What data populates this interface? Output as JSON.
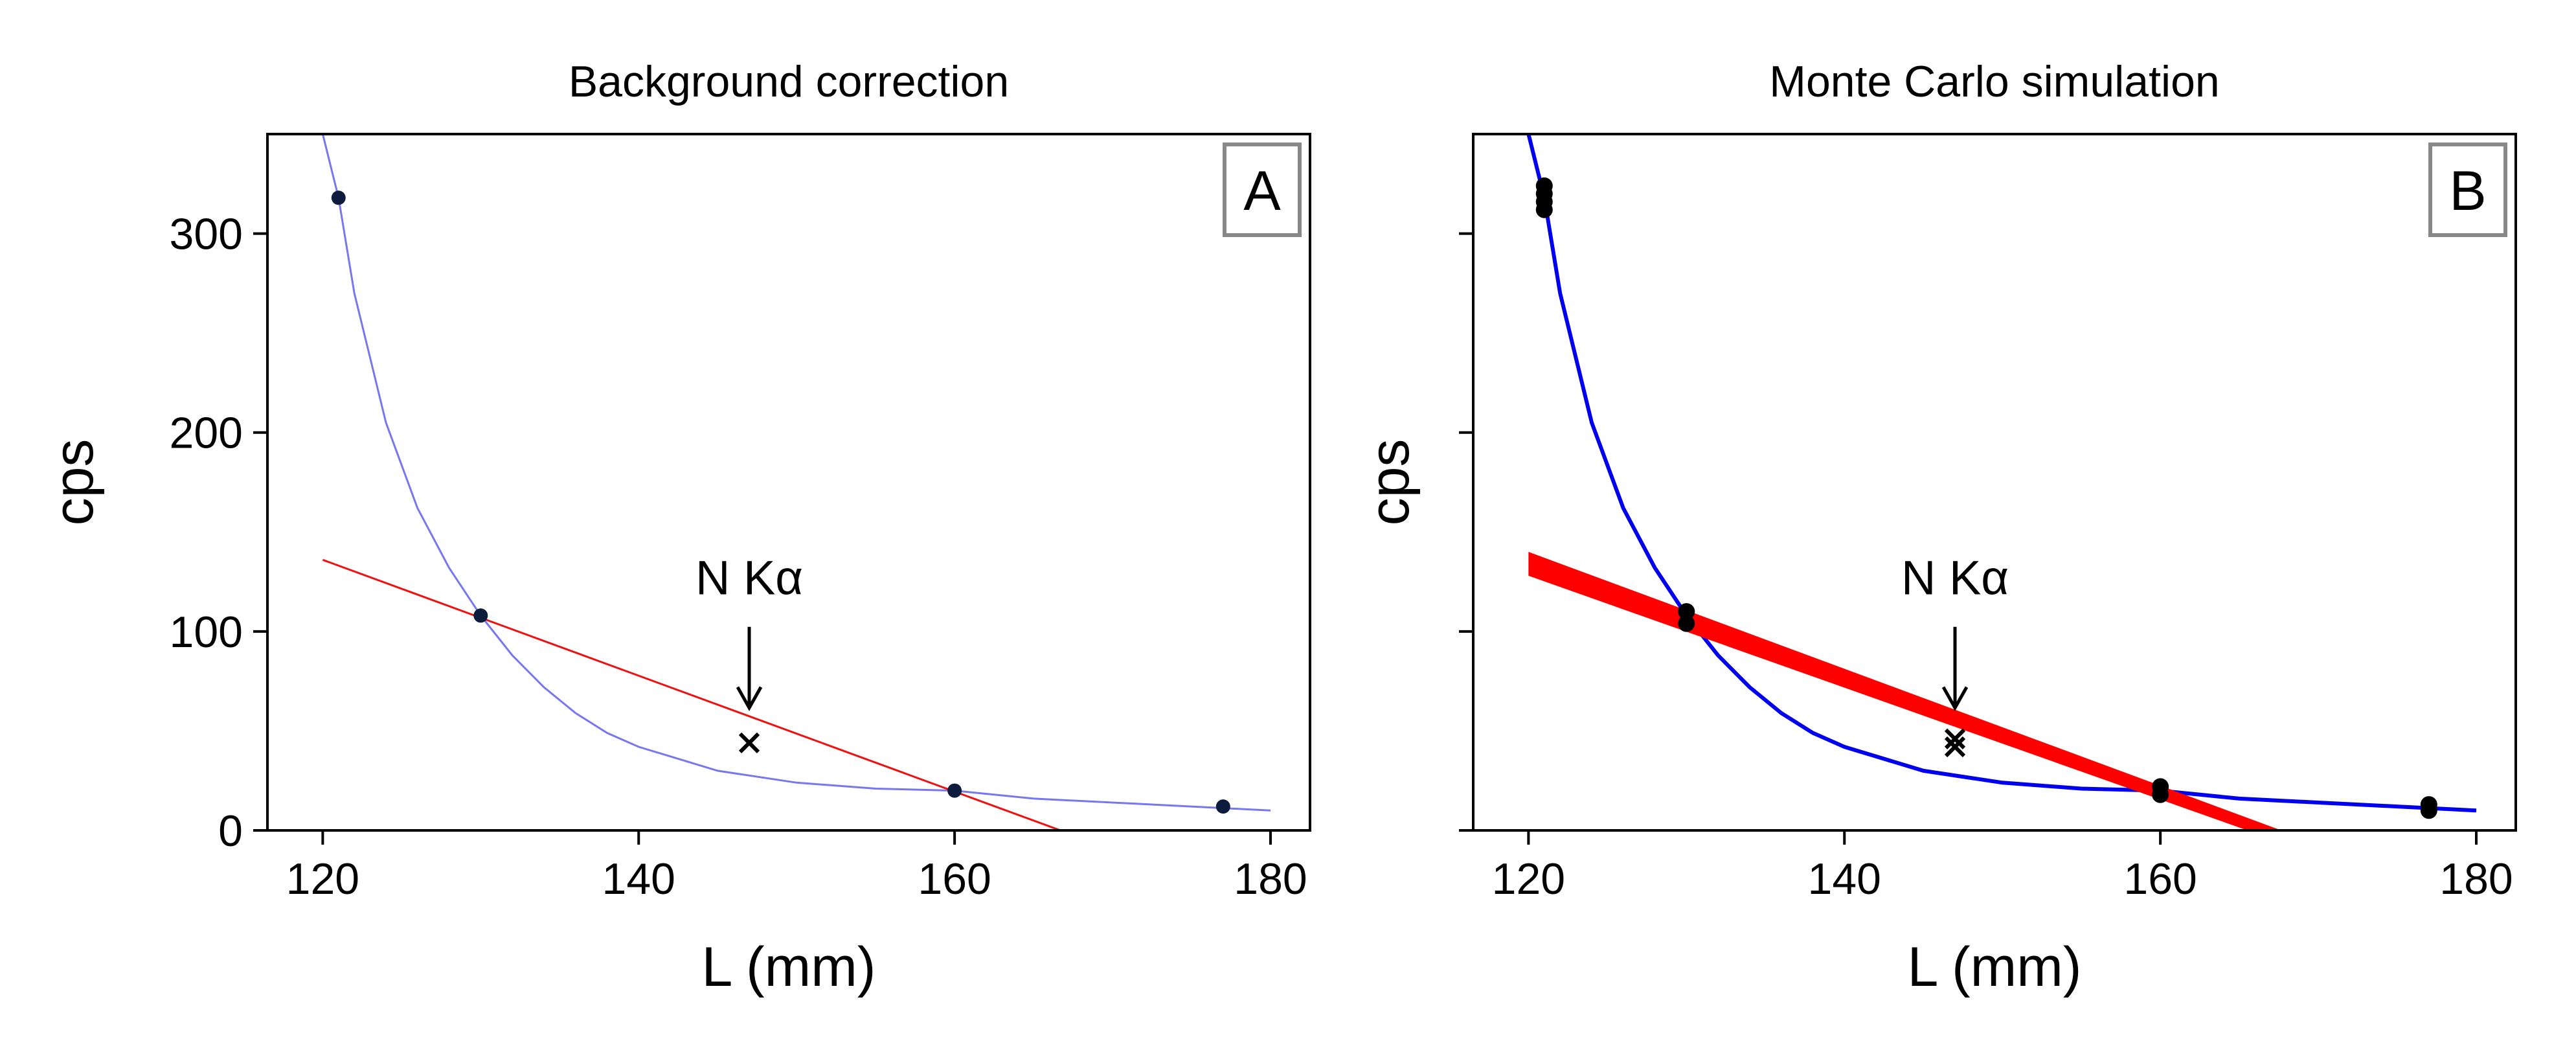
{
  "chart_data": [
    {
      "type": "line",
      "panel_label": "A",
      "title": "Background correction",
      "xlabel": "L (mm)",
      "ylabel": "cps",
      "xlim": [
        116.5,
        182.5
      ],
      "ylim": [
        0,
        350
      ],
      "xticks": [
        120,
        140,
        160,
        180
      ],
      "yticks": [
        0,
        100,
        200,
        300
      ],
      "show_ytick_labels": true,
      "grid": false,
      "legend": "none",
      "annotation": {
        "text": "N Kα",
        "x": 147,
        "y": 60
      },
      "series": [
        {
          "kind": "points",
          "color": "#0d1b3d",
          "x": [
            121,
            130,
            160,
            177
          ],
          "y": [
            318,
            108,
            20,
            12
          ]
        },
        {
          "kind": "curve",
          "color": "#7777ee",
          "x": [
            120,
            121,
            122,
            124,
            126,
            128,
            130,
            132,
            134,
            136,
            138,
            140,
            145,
            150,
            155,
            160,
            165,
            170,
            175,
            180
          ],
          "y": [
            350,
            318,
            270,
            205,
            162,
            132,
            108,
            88,
            72,
            59,
            49,
            42,
            30,
            24,
            21,
            20,
            16,
            14,
            12,
            10
          ]
        },
        {
          "kind": "line",
          "color": "#ee1111",
          "x": [
            120,
            166.7
          ],
          "y": [
            136,
            0
          ]
        },
        {
          "kind": "marker",
          "marker": "x",
          "color": "#000000",
          "x": [
            147
          ],
          "y": [
            44
          ]
        }
      ]
    },
    {
      "type": "line",
      "panel_label": "B",
      "title": "Monte Carlo simulation",
      "xlabel": "L (mm)",
      "ylabel": "cps",
      "xlim": [
        116.5,
        182.5
      ],
      "ylim": [
        0,
        350
      ],
      "xticks": [
        120,
        140,
        160,
        180
      ],
      "yticks": [
        0,
        100,
        200,
        300
      ],
      "show_ytick_labels": false,
      "grid": false,
      "legend": "none",
      "annotation": {
        "text": "N Kα",
        "x": 147,
        "y": 60
      },
      "series": [
        {
          "kind": "points",
          "color": "#000000",
          "x": [
            121,
            121,
            121,
            121,
            130,
            130,
            160,
            160,
            177,
            177
          ],
          "y": [
            312,
            316,
            320,
            324,
            104,
            110,
            18,
            22,
            10,
            13
          ]
        },
        {
          "kind": "curve",
          "color": "#0000ee",
          "x": [
            120,
            121,
            122,
            124,
            126,
            128,
            130,
            132,
            134,
            136,
            138,
            140,
            145,
            150,
            155,
            160,
            165,
            170,
            175,
            180
          ],
          "y": [
            350,
            318,
            270,
            205,
            162,
            132,
            108,
            88,
            72,
            59,
            49,
            42,
            30,
            24,
            21,
            20,
            16,
            14,
            12,
            10
          ]
        },
        {
          "kind": "band",
          "color": "#ff0000",
          "x": [
            120,
            168
          ],
          "y_upper": [
            140,
            -1
          ],
          "y_lower": [
            128,
            -7
          ]
        },
        {
          "kind": "marker",
          "marker": "x",
          "color": "#000000",
          "x": [
            147,
            147
          ],
          "y": [
            42,
            46
          ]
        }
      ]
    }
  ]
}
